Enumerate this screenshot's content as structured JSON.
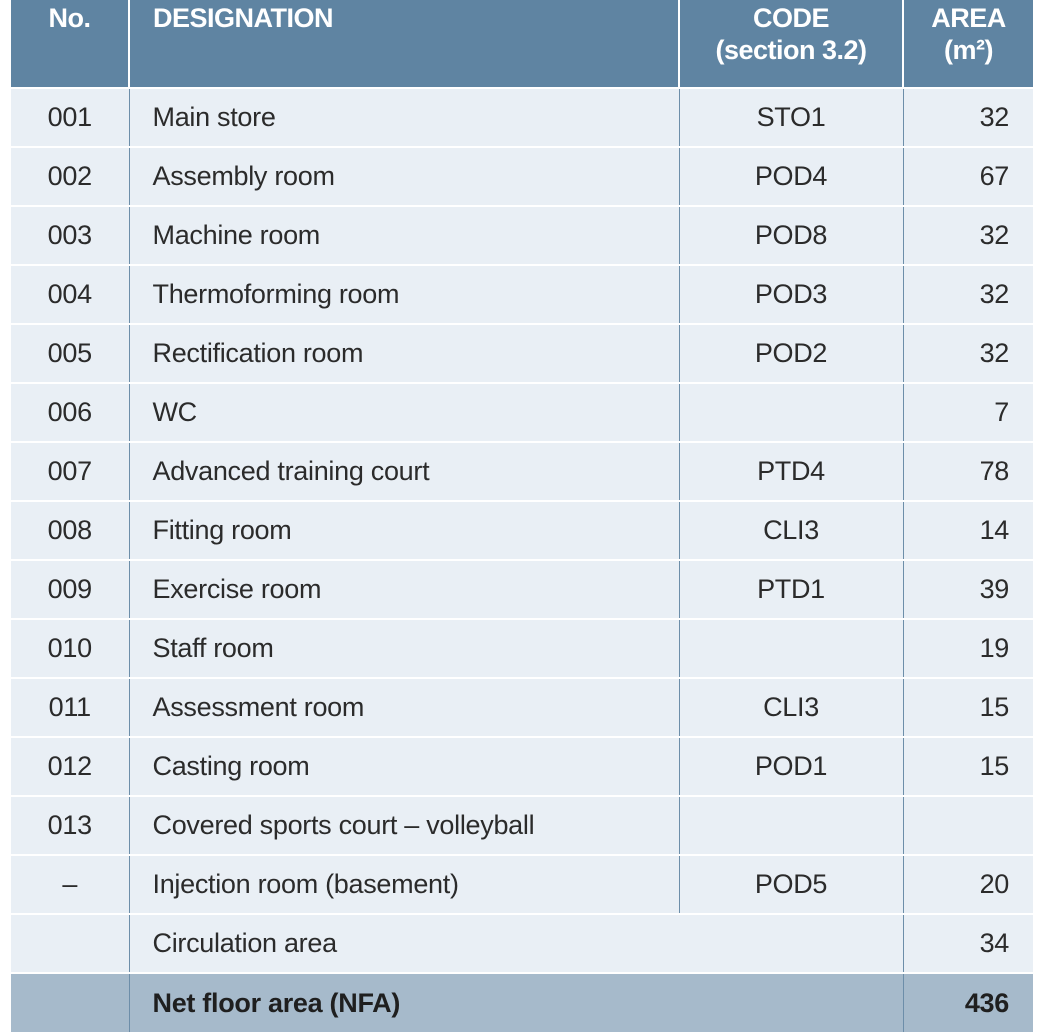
{
  "headers": {
    "no": "No.",
    "designation": "DESIGNATION",
    "code_line1": "CODE",
    "code_line2": "(section 3.2)",
    "area_line1": "AREA",
    "area_line2": "(m²)"
  },
  "rows": [
    {
      "no": "001",
      "designation": "Main store",
      "code": "STO1",
      "area": "32"
    },
    {
      "no": "002",
      "designation": "Assembly room",
      "code": "POD4",
      "area": "67"
    },
    {
      "no": "003",
      "designation": "Machine room",
      "code": "POD8",
      "area": "32"
    },
    {
      "no": "004",
      "designation": "Thermoforming room",
      "code": "POD3",
      "area": "32"
    },
    {
      "no": "005",
      "designation": "Rectification room",
      "code": "POD2",
      "area": "32"
    },
    {
      "no": "006",
      "designation": "WC",
      "code": "",
      "area": "7"
    },
    {
      "no": "007",
      "designation": "Advanced training court",
      "code": "PTD4",
      "area": "78"
    },
    {
      "no": "008",
      "designation": "Fitting room",
      "code": "CLI3",
      "area": "14"
    },
    {
      "no": "009",
      "designation": "Exercise room",
      "code": "PTD1",
      "area": "39"
    },
    {
      "no": "010",
      "designation": "Staff room",
      "code": "",
      "area": "19"
    },
    {
      "no": "011",
      "designation": "Assessment room",
      "code": "CLI3",
      "area": "15"
    },
    {
      "no": "012",
      "designation": "Casting room",
      "code": "POD1",
      "area": "15"
    },
    {
      "no": "013",
      "designation": "Covered sports court – volleyball",
      "code": "",
      "area": ""
    },
    {
      "no": "–",
      "designation": "Injection room (basement)",
      "code": "POD5",
      "area": "20"
    }
  ],
  "circulation": {
    "label": "Circulation area",
    "area": "34"
  },
  "total": {
    "label": "Net floor area (NFA)",
    "area": "436"
  },
  "colors": {
    "header_bg": "#5f84a2",
    "row_bg": "#e9eff5",
    "total_bg": "#a6bacb",
    "grid_line": "#6d8ea9"
  }
}
